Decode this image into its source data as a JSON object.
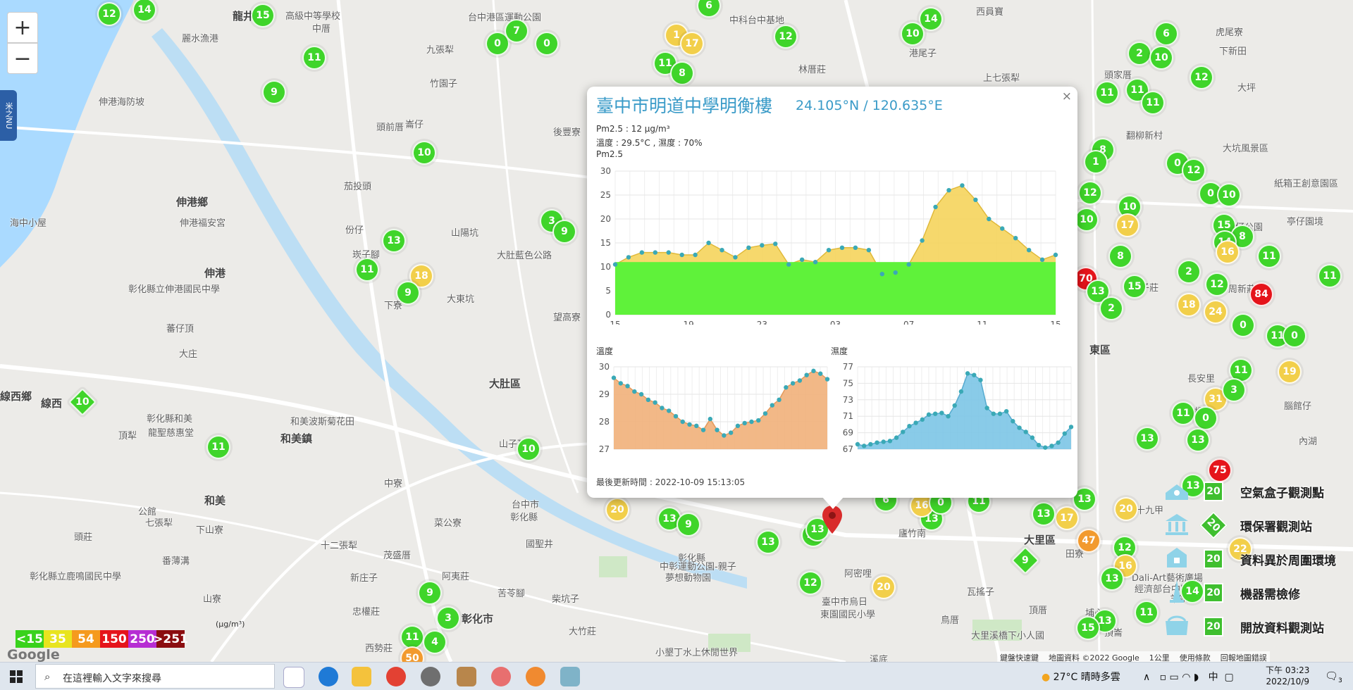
{
  "zoom": {
    "in_label": "+",
    "out_label": "−"
  },
  "side_tab_label": "米之NU",
  "places": [
    {
      "t": "龍井",
      "x": 330,
      "y": 12,
      "c": "big"
    },
    {
      "t": "高級中等學校",
      "x": 405,
      "y": 12
    },
    {
      "t": "中厝",
      "x": 443,
      "y": 30
    },
    {
      "t": "台中港區運動公園",
      "x": 664,
      "y": 14
    },
    {
      "t": "中科台中基地",
      "x": 1035,
      "y": 18
    },
    {
      "t": "西員寶",
      "x": 1385,
      "y": 6
    },
    {
      "t": "麗水漁港",
      "x": 258,
      "y": 44
    },
    {
      "t": "九張犁",
      "x": 605,
      "y": 60
    },
    {
      "t": "竹園子",
      "x": 610,
      "y": 108
    },
    {
      "t": "港尾子",
      "x": 1290,
      "y": 65
    },
    {
      "t": "林厝莊",
      "x": 1133,
      "y": 88
    },
    {
      "t": "上七張犁",
      "x": 1395,
      "y": 100
    },
    {
      "t": "頭家厝",
      "x": 1567,
      "y": 96
    },
    {
      "t": "下新田",
      "x": 1730,
      "y": 62
    },
    {
      "t": "虎尾寮",
      "x": 1725,
      "y": 35
    },
    {
      "t": "大坪",
      "x": 1756,
      "y": 114
    },
    {
      "t": "伸港海防坡",
      "x": 140,
      "y": 134
    },
    {
      "t": "崙仔",
      "x": 575,
      "y": 166
    },
    {
      "t": "頭前厝",
      "x": 534,
      "y": 170
    },
    {
      "t": "後豐寮",
      "x": 785,
      "y": 177
    },
    {
      "t": "翻柳新村",
      "x": 1598,
      "y": 182
    },
    {
      "t": "大坑風景區",
      "x": 1735,
      "y": 200
    },
    {
      "t": "茄投頭",
      "x": 488,
      "y": 254
    },
    {
      "t": "紙箱王創意園區",
      "x": 1808,
      "y": 250
    },
    {
      "t": "伸港鄉",
      "x": 250,
      "y": 276,
      "c": "big"
    },
    {
      "t": "伸港福安宮",
      "x": 255,
      "y": 306
    },
    {
      "t": "海中小屋",
      "x": 14,
      "y": 306
    },
    {
      "t": "亭仔園境",
      "x": 1826,
      "y": 304
    },
    {
      "t": "份仔",
      "x": 490,
      "y": 316
    },
    {
      "t": "山陽坑",
      "x": 640,
      "y": 320
    },
    {
      "t": "大肚藍色公路",
      "x": 705,
      "y": 352
    },
    {
      "t": "廍仔公園",
      "x": 1740,
      "y": 312
    },
    {
      "t": "崁子腳",
      "x": 500,
      "y": 351
    },
    {
      "t": "伸港",
      "x": 290,
      "y": 377,
      "c": "big"
    },
    {
      "t": "彰化縣立伸港國民中學",
      "x": 182,
      "y": 400
    },
    {
      "t": "下寮",
      "x": 545,
      "y": 423
    },
    {
      "t": "大東坑",
      "x": 634,
      "y": 414
    },
    {
      "t": "望高寮",
      "x": 785,
      "y": 440
    },
    {
      "t": "蕃仔頂",
      "x": 236,
      "y": 456
    },
    {
      "t": "子莊",
      "x": 1618,
      "y": 398
    },
    {
      "t": "周新莊",
      "x": 1743,
      "y": 400
    },
    {
      "t": "大庄",
      "x": 254,
      "y": 492
    },
    {
      "t": "東區",
      "x": 1546,
      "y": 486,
      "c": "big"
    },
    {
      "t": "大肚區",
      "x": 694,
      "y": 534,
      "c": "big"
    },
    {
      "t": "線西鄉",
      "x": 0,
      "y": 552,
      "c": "big"
    },
    {
      "t": "線西",
      "x": 58,
      "y": 562,
      "c": "big"
    },
    {
      "t": "和美波斯菊花田",
      "x": 412,
      "y": 588
    },
    {
      "t": "長安里",
      "x": 1685,
      "y": 527
    },
    {
      "t": "頂犁",
      "x": 168,
      "y": 608
    },
    {
      "t": "彰化縣和美",
      "x": 208,
      "y": 584
    },
    {
      "t": "龍聖慈惠堂",
      "x": 210,
      "y": 604
    },
    {
      "t": "和美鎮",
      "x": 398,
      "y": 612,
      "c": "big"
    },
    {
      "t": "山子頂",
      "x": 708,
      "y": 620
    },
    {
      "t": "下橋",
      "x": 1682,
      "y": 574
    },
    {
      "t": "和美",
      "x": 290,
      "y": 700,
      "c": "big"
    },
    {
      "t": "台中市",
      "x": 726,
      "y": 706
    },
    {
      "t": "彰化縣",
      "x": 724,
      "y": 724
    },
    {
      "t": "中寮",
      "x": 545,
      "y": 676
    },
    {
      "t": "公館",
      "x": 196,
      "y": 716
    },
    {
      "t": "七張犁",
      "x": 206,
      "y": 732
    },
    {
      "t": "菜公寮",
      "x": 616,
      "y": 732
    },
    {
      "t": "下山寮",
      "x": 278,
      "y": 742
    },
    {
      "t": "國聖井",
      "x": 746,
      "y": 762
    },
    {
      "t": "頭莊",
      "x": 105,
      "y": 752
    },
    {
      "t": "番薄溝",
      "x": 230,
      "y": 786
    },
    {
      "t": "十二張犁",
      "x": 455,
      "y": 764
    },
    {
      "t": "茂盛厝",
      "x": 544,
      "y": 778
    },
    {
      "t": "大里區",
      "x": 1453,
      "y": 756,
      "c": "big"
    },
    {
      "t": "彰化縣",
      "x": 962,
      "y": 782
    },
    {
      "t": "廬竹南",
      "x": 1275,
      "y": 747
    },
    {
      "t": "彰化縣立鹿鳴國民中學",
      "x": 42,
      "y": 808
    },
    {
      "t": "新庄子",
      "x": 497,
      "y": 810
    },
    {
      "t": "阿夷莊",
      "x": 627,
      "y": 808
    },
    {
      "t": "阿密哩",
      "x": 1198,
      "y": 804
    },
    {
      "t": "中彰運動公園-親子",
      "x": 936,
      "y": 794
    },
    {
      "t": "夢想動物園",
      "x": 944,
      "y": 810
    },
    {
      "t": "苦苓腳",
      "x": 706,
      "y": 832
    },
    {
      "t": "柴坑子",
      "x": 783,
      "y": 840
    },
    {
      "t": "瓦搖子",
      "x": 1372,
      "y": 830
    },
    {
      "t": "山寮",
      "x": 288,
      "y": 840
    },
    {
      "t": "臺中市烏日",
      "x": 1166,
      "y": 844
    },
    {
      "t": "東園國民小學",
      "x": 1164,
      "y": 862
    },
    {
      "t": "忠權莊",
      "x": 500,
      "y": 858
    },
    {
      "t": "彰化市",
      "x": 655,
      "y": 868,
      "c": "big"
    },
    {
      "t": "頂厝",
      "x": 1460,
      "y": 856
    },
    {
      "t": "頂崙",
      "x": 1567,
      "y": 888
    },
    {
      "t": "西勢莊",
      "x": 518,
      "y": 910
    },
    {
      "t": "埔心",
      "x": 1540,
      "y": 860
    },
    {
      "t": "大竹莊",
      "x": 807,
      "y": 886
    },
    {
      "t": "鳥厝",
      "x": 1335,
      "y": 870
    },
    {
      "t": "小墾丁水上休閒世界",
      "x": 930,
      "y": 916
    },
    {
      "t": "大里溪橋下小人國",
      "x": 1378,
      "y": 892
    },
    {
      "t": "羊家坡",
      "x": 1660,
      "y": 840
    },
    {
      "t": "內湖",
      "x": 1843,
      "y": 616
    },
    {
      "t": "腦館仔",
      "x": 1822,
      "y": 566
    },
    {
      "t": "十九甲",
      "x": 1612,
      "y": 714
    },
    {
      "t": "田寮",
      "x": 1512,
      "y": 776
    },
    {
      "t": "Dali-Art藝術廣場",
      "x": 1606,
      "y": 810
    },
    {
      "t": "經濟部台中區",
      "x": 1610,
      "y": 826
    },
    {
      "t": "溪底",
      "x": 1234,
      "y": 926
    }
  ],
  "markers": [
    {
      "v": "12",
      "x": 155,
      "y": 20,
      "c": "g"
    },
    {
      "v": "14",
      "x": 205,
      "y": 14,
      "c": "g"
    },
    {
      "v": "15",
      "x": 373,
      "y": 22,
      "c": "g"
    },
    {
      "v": "11",
      "x": 446,
      "y": 82,
      "c": "g"
    },
    {
      "v": "9",
      "x": 389,
      "y": 131,
      "c": "g"
    },
    {
      "v": "0",
      "x": 706,
      "y": 62,
      "c": "g"
    },
    {
      "v": "7",
      "x": 733,
      "y": 44,
      "c": "g"
    },
    {
      "v": "0",
      "x": 776,
      "y": 62,
      "c": "g"
    },
    {
      "v": "6",
      "x": 1006,
      "y": 8,
      "c": "g"
    },
    {
      "v": "1",
      "x": 960,
      "y": 50,
      "c": "y"
    },
    {
      "v": "17",
      "x": 982,
      "y": 62,
      "c": "y"
    },
    {
      "v": "11",
      "x": 944,
      "y": 90,
      "c": "g"
    },
    {
      "v": "8",
      "x": 968,
      "y": 104,
      "c": "g"
    },
    {
      "v": "12",
      "x": 1115,
      "y": 52,
      "c": "g"
    },
    {
      "v": "14",
      "x": 1321,
      "y": 27,
      "c": "g"
    },
    {
      "v": "10",
      "x": 1295,
      "y": 48,
      "c": "g"
    },
    {
      "v": "6",
      "x": 1655,
      "y": 48,
      "c": "g"
    },
    {
      "v": "2",
      "x": 1617,
      "y": 76,
      "c": "g"
    },
    {
      "v": "10",
      "x": 1648,
      "y": 82,
      "c": "g"
    },
    {
      "v": "12",
      "x": 1705,
      "y": 110,
      "c": "g"
    },
    {
      "v": "10",
      "x": 602,
      "y": 217,
      "c": "g"
    },
    {
      "v": "3",
      "x": 783,
      "y": 314,
      "c": "g"
    },
    {
      "v": "9",
      "x": 801,
      "y": 329,
      "c": "g"
    },
    {
      "v": "13",
      "x": 559,
      "y": 342,
      "c": "g"
    },
    {
      "v": "18",
      "x": 598,
      "y": 392,
      "c": "y"
    },
    {
      "v": "11",
      "x": 521,
      "y": 383,
      "c": "g"
    },
    {
      "v": "9",
      "x": 579,
      "y": 416,
      "c": "g"
    },
    {
      "v": "11",
      "x": 1571,
      "y": 132,
      "c": "g"
    },
    {
      "v": "11",
      "x": 1614,
      "y": 128,
      "c": "g"
    },
    {
      "v": "11",
      "x": 1636,
      "y": 146,
      "c": "g"
    },
    {
      "v": "8",
      "x": 1565,
      "y": 213,
      "c": "g"
    },
    {
      "v": "1",
      "x": 1555,
      "y": 230,
      "c": "g"
    },
    {
      "v": "0",
      "x": 1671,
      "y": 232,
      "c": "g"
    },
    {
      "v": "12",
      "x": 1694,
      "y": 242,
      "c": "g"
    },
    {
      "v": "12",
      "x": 1547,
      "y": 274,
      "c": "g"
    },
    {
      "v": "10",
      "x": 1603,
      "y": 294,
      "c": "g"
    },
    {
      "v": "0",
      "x": 1718,
      "y": 275,
      "c": "g"
    },
    {
      "v": "10",
      "x": 1744,
      "y": 277,
      "c": "g"
    },
    {
      "v": "10",
      "x": 1542,
      "y": 312,
      "c": "g"
    },
    {
      "v": "17",
      "x": 1600,
      "y": 320,
      "c": "y"
    },
    {
      "v": "15",
      "x": 1737,
      "y": 320,
      "c": "g"
    },
    {
      "v": "8",
      "x": 1763,
      "y": 336,
      "c": "g"
    },
    {
      "v": "14",
      "x": 1738,
      "y": 344,
      "c": "g"
    },
    {
      "v": "16",
      "x": 1742,
      "y": 358,
      "c": "y"
    },
    {
      "v": "11",
      "x": 1801,
      "y": 364,
      "c": "g"
    },
    {
      "v": "8",
      "x": 1590,
      "y": 364,
      "c": "g"
    },
    {
      "v": "2",
      "x": 1687,
      "y": 386,
      "c": "g"
    },
    {
      "v": "12",
      "x": 1727,
      "y": 404,
      "c": "g"
    },
    {
      "v": "11",
      "x": 1887,
      "y": 392,
      "c": "g"
    },
    {
      "v": "70",
      "x": 1541,
      "y": 396,
      "c": "r"
    },
    {
      "v": "13",
      "x": 1558,
      "y": 414,
      "c": "g"
    },
    {
      "v": "15",
      "x": 1610,
      "y": 407,
      "c": "g"
    },
    {
      "v": "2",
      "x": 1577,
      "y": 438,
      "c": "g"
    },
    {
      "v": "84",
      "x": 1790,
      "y": 418,
      "c": "r"
    },
    {
      "v": "18",
      "x": 1687,
      "y": 433,
      "c": "y"
    },
    {
      "v": "24",
      "x": 1725,
      "y": 443,
      "c": "y"
    },
    {
      "v": "0",
      "x": 1764,
      "y": 462,
      "c": "g"
    },
    {
      "v": "11",
      "x": 1813,
      "y": 477,
      "c": "g"
    },
    {
      "v": "0",
      "x": 1837,
      "y": 477,
      "c": "g"
    },
    {
      "v": "11",
      "x": 1761,
      "y": 526,
      "c": "g"
    },
    {
      "v": "19",
      "x": 1830,
      "y": 528,
      "c": "y"
    },
    {
      "v": "31",
      "x": 1725,
      "y": 567,
      "c": "y"
    },
    {
      "v": "3",
      "x": 1751,
      "y": 554,
      "c": "g"
    },
    {
      "v": "11",
      "x": 1679,
      "y": 587,
      "c": "g"
    },
    {
      "v": "0",
      "x": 1711,
      "y": 594,
      "c": "g"
    },
    {
      "v": "13",
      "x": 1628,
      "y": 623,
      "c": "g"
    },
    {
      "v": "13",
      "x": 1700,
      "y": 625,
      "c": "g"
    },
    {
      "v": "75",
      "x": 1731,
      "y": 668,
      "c": "r"
    },
    {
      "v": "13",
      "x": 1693,
      "y": 690,
      "c": "g"
    },
    {
      "v": "13",
      "x": 1539,
      "y": 709,
      "c": "g"
    },
    {
      "v": "20",
      "x": 1598,
      "y": 723,
      "c": "y"
    },
    {
      "v": "17",
      "x": 1514,
      "y": 736,
      "c": "y"
    },
    {
      "v": "13",
      "x": 1481,
      "y": 730,
      "c": "g"
    },
    {
      "v": "47",
      "x": 1545,
      "y": 768,
      "c": "o"
    },
    {
      "v": "12",
      "x": 1596,
      "y": 778,
      "c": "g"
    },
    {
      "v": "16",
      "x": 1597,
      "y": 804,
      "c": "y"
    },
    {
      "v": "13",
      "x": 1578,
      "y": 822,
      "c": "g"
    },
    {
      "v": "14",
      "x": 1692,
      "y": 840,
      "c": "g"
    },
    {
      "v": "11",
      "x": 1627,
      "y": 870,
      "c": "g"
    },
    {
      "v": "13",
      "x": 1568,
      "y": 882,
      "c": "g"
    },
    {
      "v": "15",
      "x": 1544,
      "y": 892,
      "c": "g"
    },
    {
      "v": "22",
      "x": 1760,
      "y": 780,
      "c": "y"
    },
    {
      "v": "11",
      "x": 310,
      "y": 635,
      "c": "g"
    },
    {
      "v": "10",
      "x": 750,
      "y": 638,
      "c": "g"
    },
    {
      "v": "20",
      "x": 876,
      "y": 724,
      "c": "y"
    },
    {
      "v": "13",
      "x": 950,
      "y": 737,
      "c": "g"
    },
    {
      "v": "9",
      "x": 977,
      "y": 745,
      "c": "g"
    },
    {
      "v": "13",
      "x": 1154,
      "y": 760,
      "c": "g"
    },
    {
      "v": "13",
      "x": 1090,
      "y": 770,
      "c": "g"
    },
    {
      "v": "12",
      "x": 1150,
      "y": 828,
      "c": "g"
    },
    {
      "v": "20",
      "x": 1254,
      "y": 834,
      "c": "y"
    },
    {
      "v": "13",
      "x": 1322,
      "y": 737,
      "c": "g"
    },
    {
      "v": "16",
      "x": 1308,
      "y": 718,
      "c": "y"
    },
    {
      "v": "0",
      "x": 1335,
      "y": 714,
      "c": "g"
    },
    {
      "v": "11",
      "x": 1389,
      "y": 712,
      "c": "g"
    },
    {
      "v": "13",
      "x": 1160,
      "y": 752,
      "c": "g"
    },
    {
      "v": "6",
      "x": 1257,
      "y": 710,
      "c": "g"
    },
    {
      "v": "9",
      "x": 610,
      "y": 842,
      "c": "g"
    },
    {
      "v": "3",
      "x": 636,
      "y": 878,
      "c": "g"
    },
    {
      "v": "11",
      "x": 585,
      "y": 905,
      "c": "g"
    },
    {
      "v": "4",
      "x": 617,
      "y": 912,
      "c": "g"
    },
    {
      "v": "50",
      "x": 585,
      "y": 935,
      "c": "o"
    },
    {
      "v": "10",
      "x": 117,
      "y": 571,
      "c": "g",
      "d": true
    },
    {
      "v": "9",
      "x": 1455,
      "y": 796,
      "c": "g",
      "d": true
    }
  ],
  "popup": {
    "close": "×",
    "title": "臺中市明道中學明衡樓",
    "coord": "24.105°N / 120.635°E",
    "pm_line": "Pm2.5 : 12 μg/m³",
    "temp_line": "溫度 : 29.5°C , 濕度 : 70%",
    "pm_label": "Pm2.5",
    "temp_label": "溫度",
    "hum_label": "濕度",
    "updated": "最後更新時間 : 2022-10-09 15:13:05"
  },
  "chart_data": [
    {
      "type": "area",
      "title": "Pm2.5",
      "x_ticks": [
        "15",
        "19",
        "23",
        "03",
        "07",
        "11",
        "15"
      ],
      "ylim": [
        0,
        30
      ],
      "y_ticks": [
        0,
        5,
        10,
        15,
        20,
        25,
        30
      ],
      "values": [
        10.5,
        12,
        13,
        13,
        13,
        12.5,
        12.5,
        15,
        13.5,
        12,
        14,
        14.5,
        14.8,
        10.5,
        11.5,
        11,
        13.5,
        14,
        14,
        13.5,
        8.5,
        8.8,
        10.5,
        15.5,
        22.5,
        26,
        27,
        24,
        20,
        18,
        16,
        13.5,
        11.5,
        12.5
      ],
      "threshold": 11,
      "colors": {
        "fill": "#f5d45c",
        "line": "#e0b93a",
        "point": "#3aa9b6",
        "base": "#5ff23a"
      }
    },
    {
      "type": "area",
      "title": "溫度",
      "ylim": [
        27,
        30
      ],
      "y_ticks": [
        27,
        28,
        29,
        30
      ],
      "values": [
        29.6,
        29.4,
        29.3,
        29.1,
        29.0,
        28.8,
        28.7,
        28.5,
        28.4,
        28.2,
        28.0,
        27.9,
        27.85,
        27.7,
        28.1,
        27.7,
        27.5,
        27.6,
        27.85,
        27.95,
        28.0,
        28.05,
        28.3,
        28.6,
        28.8,
        29.25,
        29.4,
        29.5,
        29.7,
        29.85,
        29.75,
        29.55
      ],
      "colors": {
        "fill": "#f1b07a",
        "line": "#e39a5c",
        "point": "#3aa9b6"
      }
    },
    {
      "type": "area",
      "title": "濕度",
      "ylim": [
        67,
        77
      ],
      "y_ticks": [
        67,
        69,
        71,
        73,
        75,
        77
      ],
      "values": [
        67.6,
        67.4,
        67.6,
        67.8,
        67.9,
        68.0,
        68.4,
        69.1,
        69.8,
        70.2,
        70.6,
        71.2,
        71.3,
        71.4,
        71.0,
        72.3,
        74.0,
        76.2,
        76.0,
        75.4,
        72.0,
        71.3,
        71.3,
        71.6,
        70.4,
        69.6,
        69.1,
        68.4,
        67.5,
        67.2,
        67.4,
        67.8,
        68.9,
        69.7
      ],
      "colors": {
        "fill": "#7cc5e6",
        "line": "#55aacf",
        "point": "#3aa9b6"
      }
    }
  ],
  "aq_legend": [
    {
      "label": "<15",
      "color": "#39d21c"
    },
    {
      "label": "35",
      "color": "#e8e41f"
    },
    {
      "label": "54",
      "color": "#f59a1e"
    },
    {
      "label": "150",
      "color": "#e5141b"
    },
    {
      "label": "250",
      "color": "#b62dd3"
    },
    {
      "label": ">251",
      "color": "#8b0d10"
    }
  ],
  "aq_unit": "(μg/m³)",
  "station_legend": [
    {
      "label": "空氣盒子觀測點",
      "badge": "20",
      "icon": "airbox-icon"
    },
    {
      "label": "環保署觀測站",
      "badge": "20",
      "icon": "epa-station-icon"
    },
    {
      "label": "資料異於周圍環境",
      "badge": "20",
      "icon": "anomaly-icon"
    },
    {
      "label": "機器需檢修",
      "badge": "20",
      "icon": "maintenance-icon"
    },
    {
      "label": "開放資料觀測站",
      "badge": "20",
      "icon": "open-data-icon"
    }
  ],
  "google_logo": "Google",
  "map_attrib": [
    "鍵盤快速鍵",
    "地圖資料 ©2022 Google",
    "1公里",
    "使用條款",
    "回報地圖錯誤"
  ],
  "taskbar": {
    "search_placeholder": "在這裡輸入文字來搜尋",
    "weather": "27°C  晴時多雲",
    "ime": "中",
    "time": "下午 03:23",
    "date": "2022/10/9",
    "notifications": "3"
  }
}
